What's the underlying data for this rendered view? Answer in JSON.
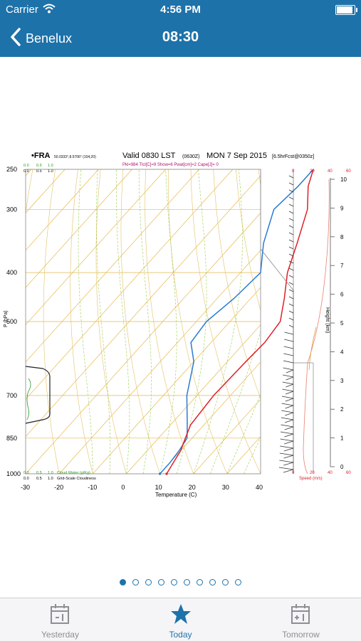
{
  "status_bar": {
    "carrier": "Carrier",
    "time": "4:56 PM",
    "battery_level": 1.0
  },
  "nav": {
    "back_label": "Benelux",
    "title": "08:30"
  },
  "chart": {
    "header_station": "•FRA",
    "header_coords": "50.0333°,8.5706° (104,20)",
    "header_valid": "Valid 0830 LST",
    "header_utc": "(0630Z)",
    "header_date": "MON 7 Sep 2015",
    "header_fcst": "[6.5hrFcst@0350z]",
    "header_indices": "Pkl=984 Tlcl[C]=9 Show=6 Pwat[cm]=2 Cape[J]= 0",
    "ylabel": "P (hPa)",
    "xlabel": "Temperature (C)",
    "height_label": "Height (km)",
    "speed_label": "Speed (m/s)",
    "cloud_label1": "Cloud Water (g/Kg)",
    "cloud_label2": "Grid-Scale Cloudiness",
    "cloud_ticks": [
      "0.0",
      "0.5",
      "1.0"
    ],
    "speed_ticks": [
      "0",
      "20",
      "40",
      "60"
    ],
    "pressure_ticks": [
      "250",
      "300",
      "400",
      "500",
      "700",
      "850",
      "1000"
    ],
    "temp_ticks": [
      "-30",
      "-20",
      "-10",
      "0",
      "10",
      "20",
      "30",
      "40"
    ],
    "height_ticks": [
      "0",
      "1",
      "2",
      "3",
      "4",
      "5",
      "6",
      "7",
      "8",
      "9",
      "10"
    ]
  },
  "chart_data": {
    "type": "line",
    "title": "Valid 0830 LST (0630Z) MON 7 Sep 2015",
    "xlabel": "Temperature (C)",
    "ylabel": "P (hPa)",
    "xlim": [
      -30,
      40
    ],
    "ylim": [
      1000,
      250
    ],
    "series": [
      {
        "name": "Temperature",
        "x": [
          12,
          11,
          10,
          8,
          6,
          5,
          5.5,
          6,
          5,
          0,
          -6,
          -11,
          -17,
          -23,
          -26
        ],
        "y": [
          1000,
          950,
          900,
          850,
          800,
          700,
          600,
          550,
          500,
          450,
          400,
          350,
          300,
          270,
          250
        ]
      },
      {
        "name": "Dewpoint",
        "x": [
          10,
          10,
          9.5,
          8.5,
          5,
          -3,
          -10,
          -16,
          -17,
          -15,
          -14,
          -21,
          -27,
          -26,
          -26
        ],
        "y": [
          1000,
          950,
          900,
          850,
          800,
          700,
          600,
          550,
          500,
          450,
          400,
          350,
          300,
          270,
          250
        ]
      }
    ]
  },
  "pager": {
    "count": 10,
    "active": 0
  },
  "tabs": [
    {
      "label": "Yesterday",
      "icon": "calendar-minus-icon",
      "active": false
    },
    {
      "label": "Today",
      "icon": "star-icon",
      "active": true
    },
    {
      "label": "Tomorrow",
      "icon": "calendar-plus-icon",
      "active": false
    }
  ],
  "colors": {
    "accent": "#1d72aa",
    "temperature": "#e0202a",
    "dewpoint": "#2a7ad4",
    "isotherm": "#e6b84a",
    "dry_adiabat": "#e6c060",
    "moist_adiabat": "#9ccc4a"
  }
}
